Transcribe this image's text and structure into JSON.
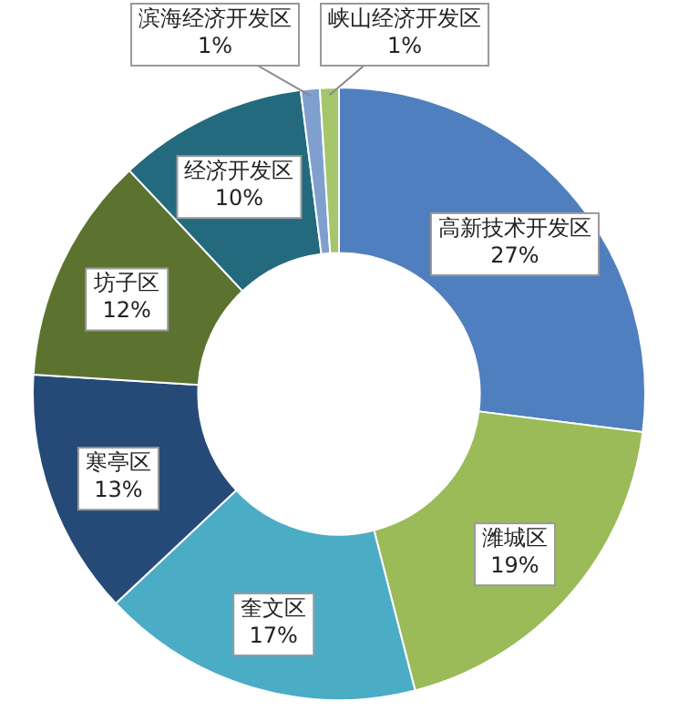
{
  "chart_data": {
    "type": "donut",
    "categories": [
      "高新技术开发区",
      "潍城区",
      "奎文区",
      "寒亭区",
      "坊子区",
      "经济开发区",
      "滨海经济开发区",
      "峡山经济开发区"
    ],
    "values": [
      27,
      19,
      17,
      13,
      12,
      10,
      1,
      1
    ],
    "value_labels": [
      "27%",
      "19%",
      "17%",
      "13%",
      "12%",
      "10%",
      "1%",
      "1%"
    ],
    "colors": [
      "#4f7fbf",
      "#9bbb59",
      "#4bacc6",
      "#254a78",
      "#5c7330",
      "#236a7e",
      "#7f9fcf",
      "#a5c66b"
    ]
  }
}
